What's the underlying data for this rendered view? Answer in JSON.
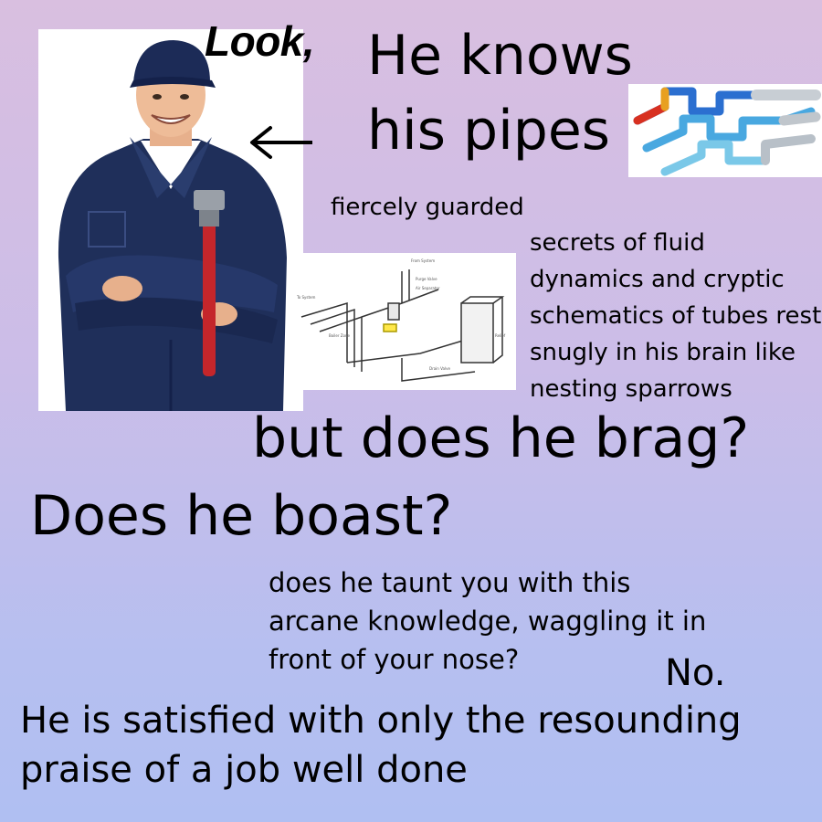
{
  "meme": {
    "look": "Look,",
    "headline": "He knows his pipes",
    "secrets_line1": "fiercely guarded",
    "secrets_line2": "secrets of fluid dynamics and cryptic schematics of tubes rest snugly in his brain like nesting sparrows",
    "brag": "but does he brag?",
    "boast": "Does he boast?",
    "taunt": "does he taunt you with this arcane knowledge, waggling it in front of your nose?",
    "answer": "No.",
    "praise": "He is satisfied with only the resounding praise of a job well done"
  },
  "images": {
    "plumber": "plumber-photo",
    "pipes_render": "3d-pipe-render",
    "schematic": "heating-system-schematic"
  },
  "colors": {
    "bg_top": "#d9bfe0",
    "bg_bottom": "#b0bff2",
    "overalls": "#1f2f5a",
    "wrench": "#c4262b"
  }
}
